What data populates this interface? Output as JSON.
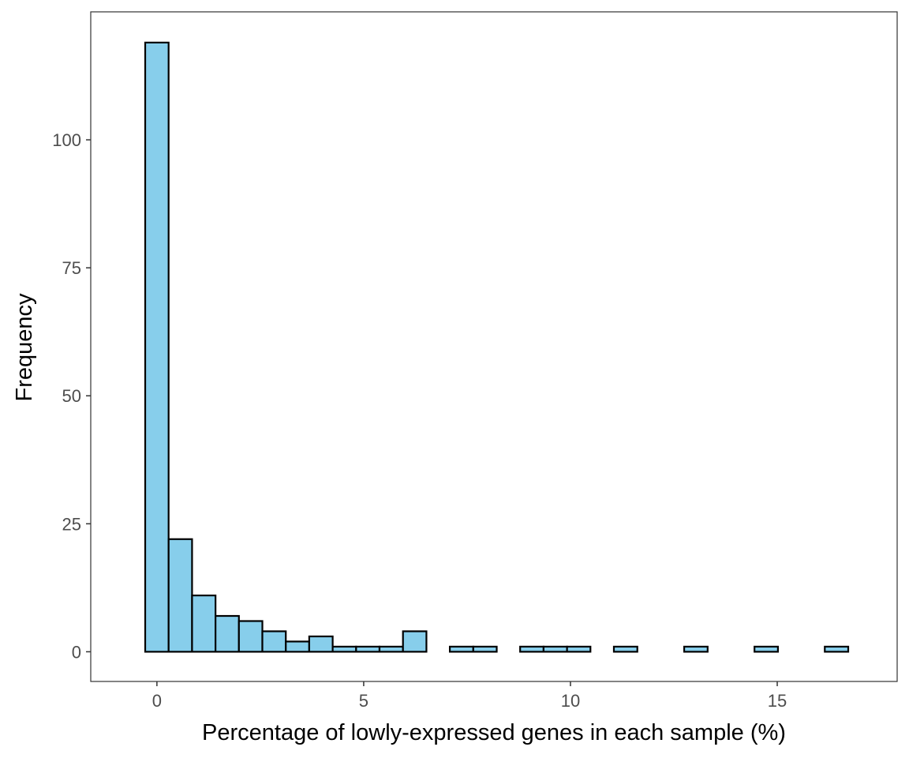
{
  "chart_data": {
    "type": "bar",
    "subtype": "histogram",
    "title": "",
    "xlabel": "Percentage of lowly-expressed genes in each sample (%)",
    "ylabel": "Frequency",
    "xlim": [
      -1.6,
      17.9
    ],
    "ylim": [
      -5.8,
      125
    ],
    "bin_width": 0.567,
    "bins": [
      {
        "x0": -0.283,
        "x1": 0.283,
        "count": 119
      },
      {
        "x0": 0.283,
        "x1": 0.85,
        "count": 22
      },
      {
        "x0": 0.85,
        "x1": 1.417,
        "count": 11
      },
      {
        "x0": 1.417,
        "x1": 1.983,
        "count": 7
      },
      {
        "x0": 1.983,
        "x1": 2.55,
        "count": 6
      },
      {
        "x0": 2.55,
        "x1": 3.117,
        "count": 4
      },
      {
        "x0": 3.117,
        "x1": 3.683,
        "count": 2
      },
      {
        "x0": 3.683,
        "x1": 4.25,
        "count": 3
      },
      {
        "x0": 4.25,
        "x1": 4.817,
        "count": 1
      },
      {
        "x0": 4.817,
        "x1": 5.383,
        "count": 1
      },
      {
        "x0": 5.383,
        "x1": 5.95,
        "count": 1
      },
      {
        "x0": 5.95,
        "x1": 6.517,
        "count": 4
      },
      {
        "x0": 6.517,
        "x1": 7.083,
        "count": 0
      },
      {
        "x0": 7.083,
        "x1": 7.65,
        "count": 1
      },
      {
        "x0": 7.65,
        "x1": 8.217,
        "count": 1
      },
      {
        "x0": 8.217,
        "x1": 8.783,
        "count": 0
      },
      {
        "x0": 8.783,
        "x1": 9.35,
        "count": 1
      },
      {
        "x0": 9.35,
        "x1": 9.917,
        "count": 1
      },
      {
        "x0": 9.917,
        "x1": 10.483,
        "count": 1
      },
      {
        "x0": 10.483,
        "x1": 11.05,
        "count": 0
      },
      {
        "x0": 11.05,
        "x1": 11.617,
        "count": 1
      },
      {
        "x0": 11.617,
        "x1": 12.183,
        "count": 0
      },
      {
        "x0": 12.183,
        "x1": 12.75,
        "count": 0
      },
      {
        "x0": 12.75,
        "x1": 13.317,
        "count": 1
      },
      {
        "x0": 13.317,
        "x1": 13.883,
        "count": 0
      },
      {
        "x0": 13.883,
        "x1": 14.45,
        "count": 0
      },
      {
        "x0": 14.45,
        "x1": 15.017,
        "count": 1
      },
      {
        "x0": 15.017,
        "x1": 15.583,
        "count": 0
      },
      {
        "x0": 15.583,
        "x1": 16.15,
        "count": 0
      },
      {
        "x0": 16.15,
        "x1": 16.717,
        "count": 1
      }
    ],
    "x_ticks": [
      0,
      5,
      10,
      15
    ],
    "x_tick_labels": [
      "0",
      "5",
      "10",
      "15"
    ],
    "y_ticks": [
      0,
      25,
      50,
      75,
      100
    ],
    "y_tick_labels": [
      "0",
      "25",
      "50",
      "75",
      "100"
    ],
    "grid": false,
    "legend": "none",
    "colors": {
      "bar_fill": "#87CEEB",
      "bar_outline": "#000000",
      "panel_border": "#333333",
      "tick_label": "#4d4d4d",
      "axis_title": "#000000",
      "background": "#ffffff"
    }
  }
}
